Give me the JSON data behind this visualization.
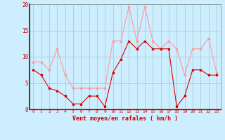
{
  "hours": [
    0,
    1,
    2,
    3,
    4,
    5,
    6,
    7,
    8,
    9,
    10,
    11,
    12,
    13,
    14,
    15,
    16,
    17,
    18,
    19,
    20,
    21,
    22,
    23
  ],
  "vent_moyen": [
    7.5,
    6.5,
    4.0,
    3.5,
    2.5,
    1.0,
    1.0,
    2.5,
    2.5,
    0.5,
    7.0,
    9.5,
    13.0,
    11.5,
    13.0,
    11.5,
    11.5,
    11.5,
    0.5,
    2.5,
    7.5,
    7.5,
    6.5,
    6.5
  ],
  "rafales": [
    9.0,
    9.0,
    7.5,
    11.5,
    6.5,
    4.0,
    4.0,
    4.0,
    4.0,
    4.0,
    13.0,
    13.0,
    19.5,
    13.0,
    19.5,
    13.0,
    11.5,
    13.0,
    11.5,
    6.5,
    11.5,
    11.5,
    13.5,
    7.0
  ],
  "color_moyen": "#dd0000",
  "color_rafales": "#ff9999",
  "bg_color": "#cceeff",
  "grid_color": "#aacccc",
  "xlabel": "Vent moyen/en rafales ( km/h )",
  "tick_color": "#cc0000",
  "ylim": [
    0,
    20
  ],
  "yticks": [
    0,
    5,
    10,
    15,
    20
  ],
  "xticks": [
    0,
    1,
    2,
    3,
    4,
    5,
    6,
    7,
    8,
    9,
    10,
    11,
    12,
    13,
    14,
    15,
    16,
    17,
    18,
    19,
    20,
    21,
    22,
    23
  ]
}
